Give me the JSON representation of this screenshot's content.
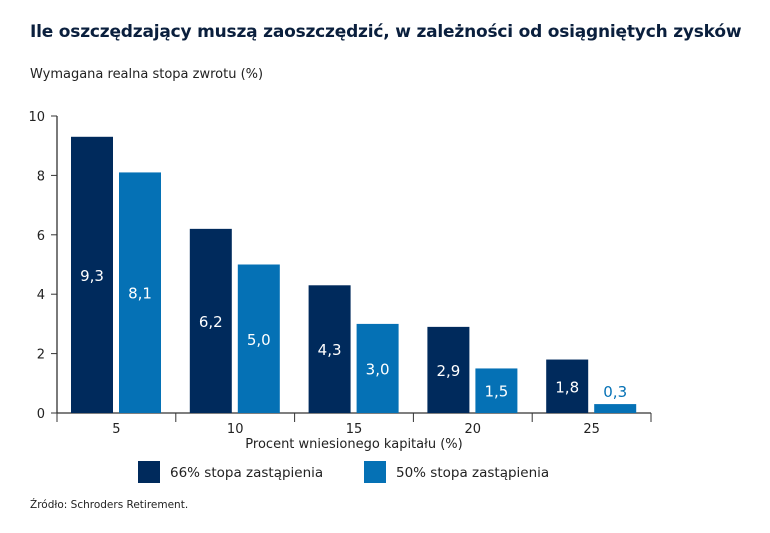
{
  "chart_data": {
    "type": "bar",
    "title": "Ile oszczędzający muszą zaoszczędzić, w zależności od osiągniętych zysków",
    "ylabel": "Wymagana realna stopa zwrotu (%)",
    "xlabel": "Procent wniesionego kapitału (%)",
    "categories": [
      "5",
      "10",
      "15",
      "20",
      "25"
    ],
    "ylim": [
      0,
      10
    ],
    "yticks": [
      "0",
      "2",
      "4",
      "6",
      "8",
      "10"
    ],
    "series": [
      {
        "name": "66% stopa zastąpienia",
        "color": "#002a5c",
        "values": [
          9.3,
          6.2,
          4.3,
          2.9,
          1.8
        ],
        "labels": [
          "9,3",
          "6,2",
          "4,3",
          "2,9",
          "1,8"
        ]
      },
      {
        "name": "50% stopa zastąpienia",
        "color": "#0571b5",
        "values": [
          8.1,
          5.0,
          3.0,
          1.5,
          0.3
        ],
        "labels": [
          "8,1",
          "5,0",
          "3,0",
          "1,5",
          "0,3"
        ]
      }
    ],
    "legend": "bottom",
    "grid": false
  },
  "source": "Źródło: Schroders Retirement."
}
